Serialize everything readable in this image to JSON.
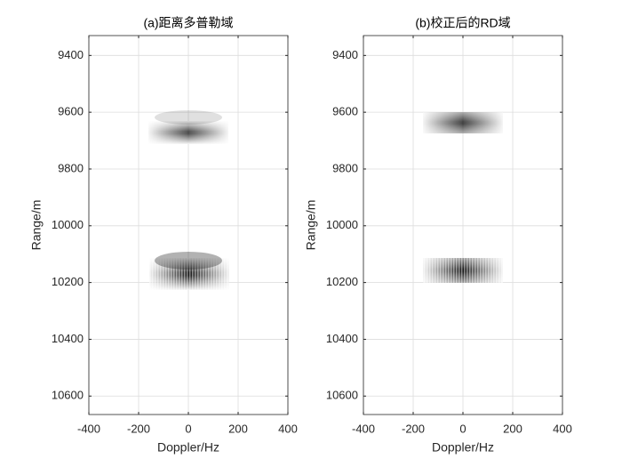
{
  "chart_data": [
    {
      "type": "image",
      "title": "(a)距离多普勒域",
      "x_label": "Doppler/Hz",
      "y_label": "Range/m",
      "xlim": [
        -400,
        400
      ],
      "xticks": [
        -400,
        -200,
        0,
        200,
        400
      ],
      "ylim": [
        9330,
        10665
      ],
      "yticks": [
        9400,
        9600,
        9800,
        10000,
        10200,
        10400,
        10600
      ],
      "y_reversed": true,
      "grid": true
    },
    {
      "type": "image",
      "title": "(b)校正后的RD域",
      "x_label": "Doppler/Hz",
      "y_label": "Range/m",
      "xlim": [
        -400,
        400
      ],
      "xticks": [
        -400,
        -200,
        0,
        200,
        400
      ],
      "ylim": [
        9330,
        10665
      ],
      "yticks": [
        9400,
        9600,
        9800,
        10000,
        10200,
        10400,
        10600
      ],
      "y_reversed": true,
      "grid": true
    }
  ]
}
